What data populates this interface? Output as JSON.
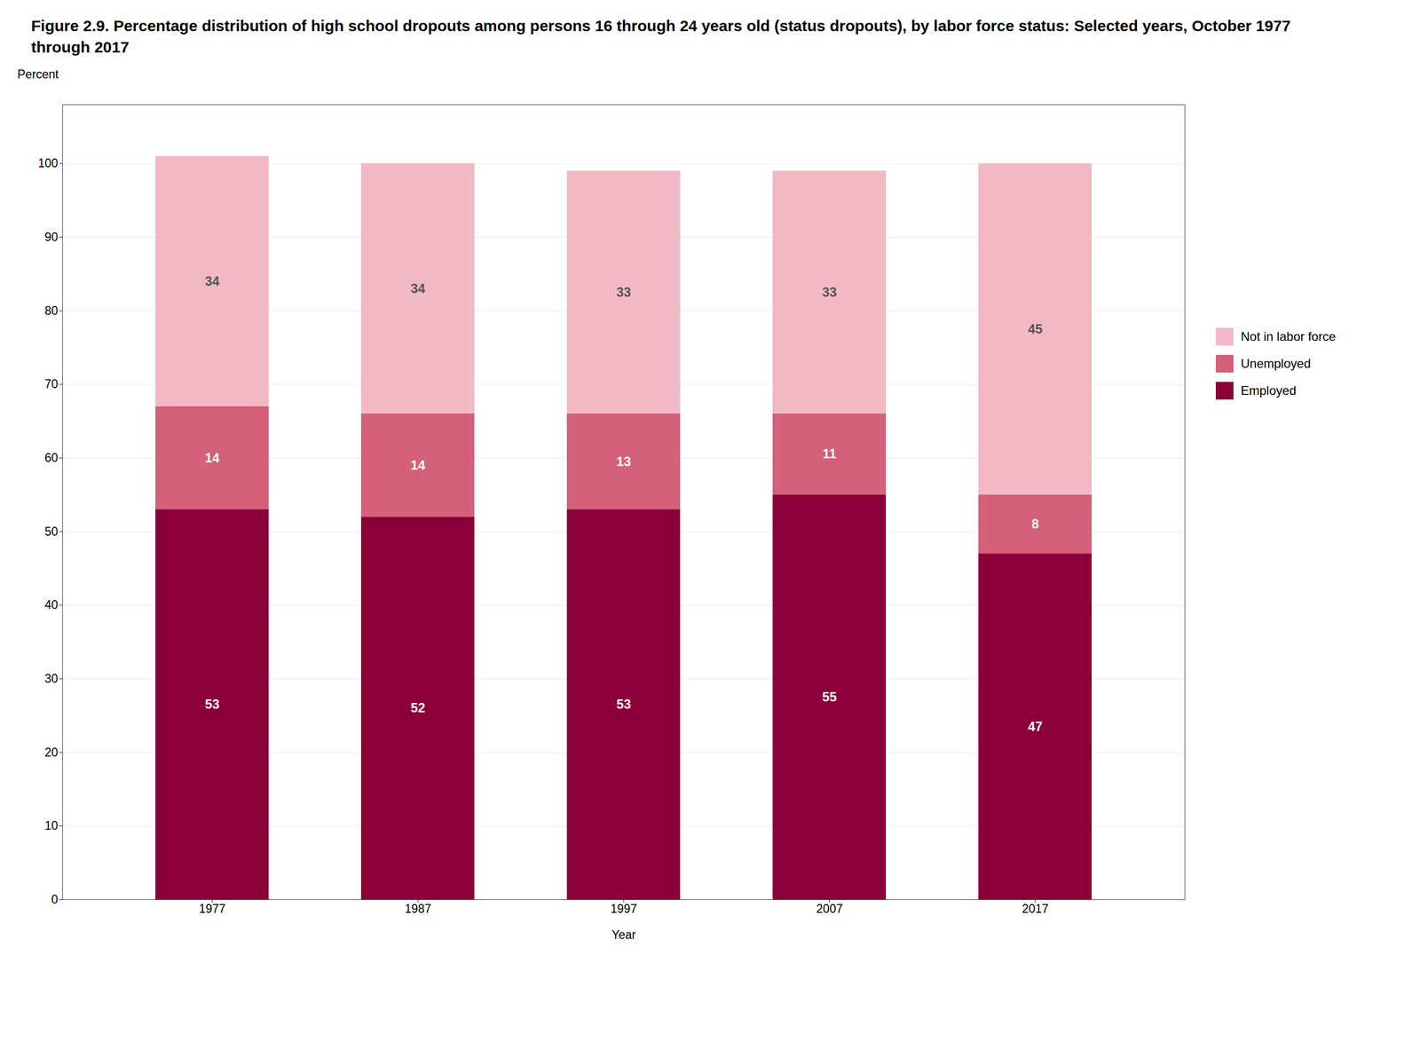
{
  "chart_data": {
    "type": "bar",
    "title": "Figure 2.9. Percentage distribution of high school dropouts among persons 16 through 24 years old (status dropouts), by labor force status: Selected years, October 1977 through 2017",
    "xlabel": "Year",
    "ylabel": "Percent",
    "categories": [
      "1977",
      "1987",
      "1997",
      "2007",
      "2017"
    ],
    "series": [
      {
        "name": "Employed",
        "color": "#8B0038",
        "values": [
          53,
          52,
          53,
          55,
          47
        ]
      },
      {
        "name": "Unemployed",
        "color": "#D4607A",
        "values": [
          14,
          14,
          13,
          11,
          8
        ]
      },
      {
        "name": "Not in labor force",
        "color": "#F2B8C6",
        "values": [
          34,
          34,
          33,
          33,
          45
        ]
      }
    ],
    "stacked": true,
    "data_labels": true,
    "grid": true,
    "legend": "right",
    "ylim": [
      0,
      108
    ],
    "yticks": [
      0,
      10,
      20,
      30,
      40,
      50,
      60,
      70,
      80,
      90,
      100
    ]
  }
}
